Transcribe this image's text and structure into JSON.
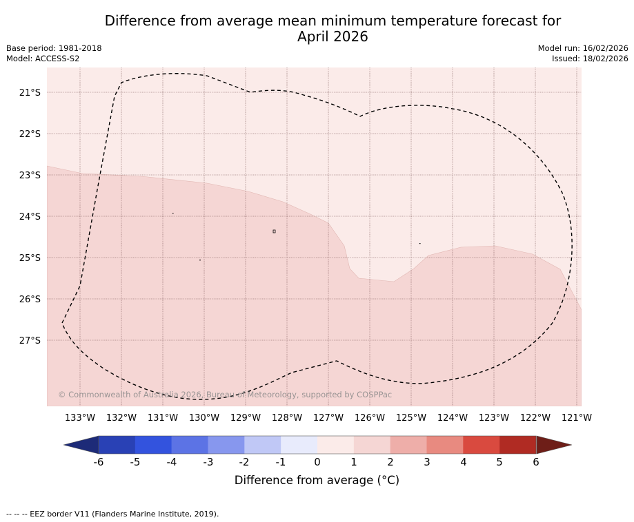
{
  "header": {
    "title_line1": "Difference from average mean minimum temperature forecast for",
    "title_line2": "April 2026",
    "base_period": "Base period: 1981-2018",
    "model": "Model: ACCESS-S2",
    "model_run": "Model run: 16/02/2026",
    "issued": "Issued: 18/02/2026"
  },
  "map": {
    "lat_labels": [
      "21°S",
      "22°S",
      "23°S",
      "24°S",
      "25°S",
      "26°S",
      "27°S"
    ],
    "lon_labels": [
      "133°W",
      "132°W",
      "131°W",
      "130°W",
      "129°W",
      "128°W",
      "127°W",
      "126°W",
      "125°W",
      "124°W",
      "123°W",
      "122°W",
      "121°W"
    ],
    "copyright": "© Commonwealth of Australia 2026, Bureau of Meteorology, supported by COSPPac",
    "fill_colors": {
      "band_0_1": "#fbebe9",
      "band_1_2": "#f5d6d4"
    }
  },
  "colorbar": {
    "ticks": [
      "-6",
      "-5",
      "-4",
      "-3",
      "-2",
      "-1",
      "0",
      "1",
      "2",
      "3",
      "4",
      "5",
      "6"
    ],
    "colors": [
      "#2941b5",
      "#3353de",
      "#5c73e5",
      "#8797ee",
      "#c0c8f6",
      "#e8ebfc",
      "#fbebe9",
      "#f5d6d4",
      "#eeaea9",
      "#e88a80",
      "#d94a3f",
      "#b02b23"
    ],
    "under_color": "#1d2b78",
    "over_color": "#6e1e18",
    "label": "Difference from average (°C)"
  },
  "legend": {
    "eez_text": "--  --  -- EEZ border V11 (Flanders Marine Institute, 2019)."
  }
}
